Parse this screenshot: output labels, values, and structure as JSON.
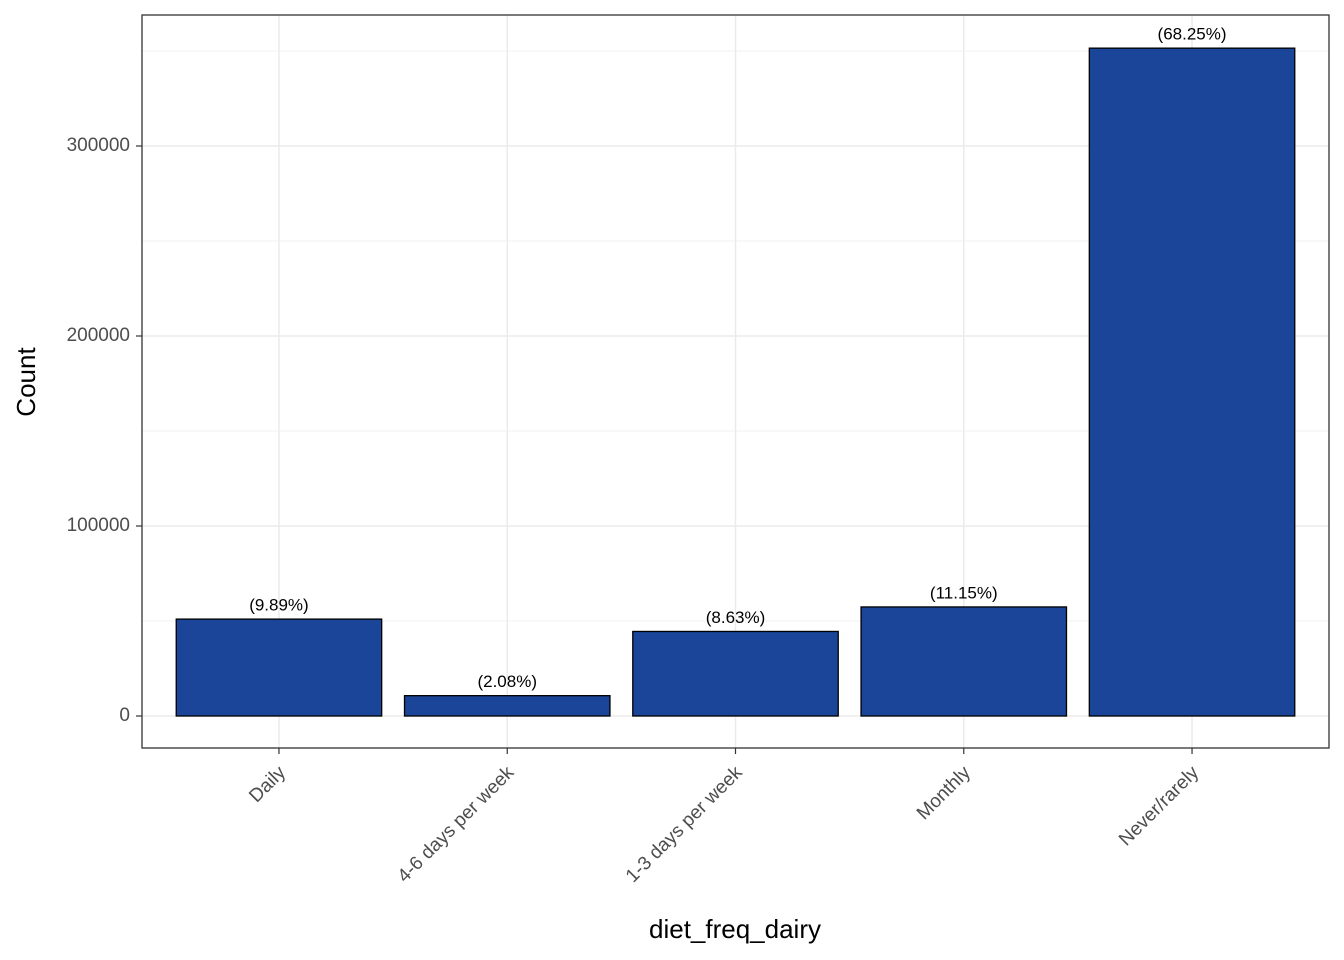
{
  "chart_data": {
    "type": "bar",
    "x_label": "diet_freq_dairy",
    "y_label": "Count",
    "categories": [
      "Daily",
      "4-6 days per week",
      "1-3 days per week",
      "Monthly",
      "Never/rarely"
    ],
    "values": [
      51000,
      10700,
      44500,
      57400,
      351500
    ],
    "percentages": [
      9.89,
      2.08,
      8.63,
      11.15,
      68.25
    ],
    "percentage_labels": [
      "(9.89%)",
      "(2.08%)",
      "(8.63%)",
      "(11.15%)",
      "(68.25%)"
    ],
    "color": "#1a4599",
    "ylim": [
      -16842,
      368947
    ],
    "yticks": [
      0,
      100000,
      200000,
      300000
    ],
    "grid": true
  }
}
